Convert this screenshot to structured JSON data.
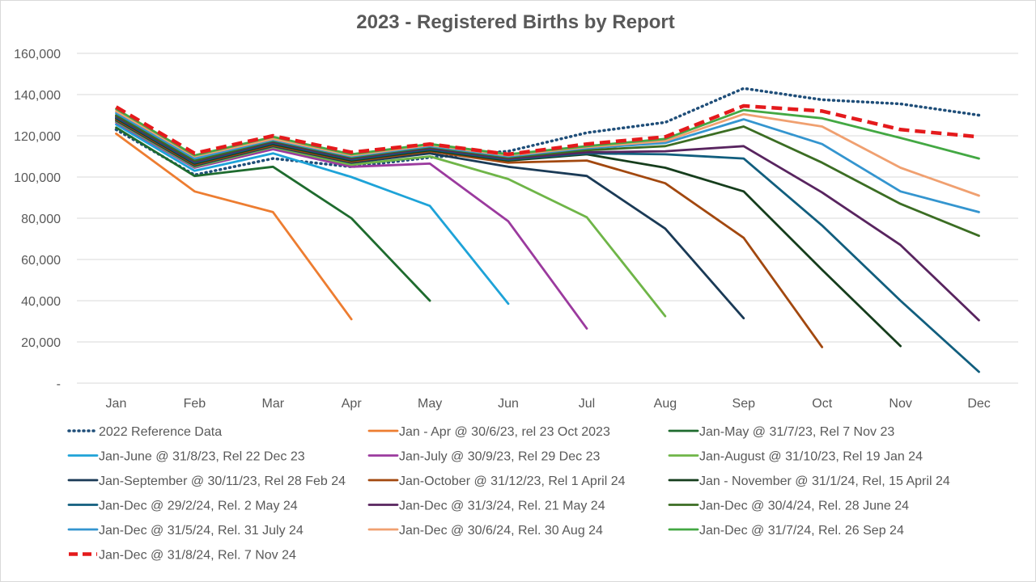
{
  "chart_data": {
    "type": "line",
    "title": "2023 - Registered Births by Report",
    "xlabel": "",
    "ylabel": "",
    "categories": [
      "Jan",
      "Feb",
      "Mar",
      "Apr",
      "May",
      "Jun",
      "Jul",
      "Aug",
      "Sep",
      "Oct",
      "Nov",
      "Dec"
    ],
    "y_tick_labels": [
      "-",
      "20,000",
      "40,000",
      "60,000",
      "80,000",
      "100,000",
      "120,000",
      "140,000",
      "160,000"
    ],
    "ylim": [
      0,
      160000
    ],
    "grid": true,
    "legend_position": "bottom",
    "series": [
      {
        "name": "2022 Reference Data",
        "color": "#1f4e79",
        "dash": "dotted",
        "values": [
          123000,
          101000,
          109000,
          105000,
          109500,
          112500,
          121500,
          126500,
          143000,
          137500,
          135500,
          130000
        ]
      },
      {
        "name": "Jan - Apr @ 30/6/23, rel 23 Oct 2023",
        "color": "#ed7d31",
        "dash": "solid",
        "values": [
          121000,
          93000,
          83000,
          31000,
          null,
          null,
          null,
          null,
          null,
          null,
          null,
          null
        ]
      },
      {
        "name": "Jan-May @ 31/7/23, Rel 7 Nov 23",
        "color": "#1e6b2e",
        "dash": "solid",
        "values": [
          124000,
          100500,
          105000,
          80000,
          40000,
          null,
          null,
          null,
          null,
          null,
          null,
          null
        ]
      },
      {
        "name": "Jan-June @ 31/8/23, Rel 22 Dec 23",
        "color": "#1ea3d8",
        "dash": "solid",
        "values": [
          125500,
          103000,
          111500,
          100000,
          86000,
          38500,
          null,
          null,
          null,
          null,
          null,
          null
        ]
      },
      {
        "name": "Jan-July @ 30/9/23, Rel 29 Dec 23",
        "color": "#9b3a9e",
        "dash": "solid",
        "values": [
          126500,
          104500,
          113500,
          105000,
          106500,
          78500,
          26500,
          null,
          null,
          null,
          null,
          null
        ]
      },
      {
        "name": "Jan-August @ 31/10/23, Rel 19 Jan 24",
        "color": "#6fb548",
        "dash": "solid",
        "values": [
          127000,
          105000,
          114500,
          106000,
          110000,
          99000,
          80500,
          32500,
          null,
          null,
          null,
          null
        ]
      },
      {
        "name": "Jan-September @ 30/11/23, Rel 28 Feb 24",
        "color": "#1a3a56",
        "dash": "solid",
        "values": [
          127500,
          105500,
          115000,
          107000,
          111500,
          105000,
          100500,
          75000,
          31500,
          null,
          null,
          null
        ]
      },
      {
        "name": "Jan-October @ 31/12/23, Rel 1 April 24",
        "color": "#a2480f",
        "dash": "solid",
        "values": [
          128000,
          106000,
          115500,
          107500,
          112500,
          107000,
          108000,
          97000,
          70500,
          17500,
          null,
          null
        ]
      },
      {
        "name": "Jan - November @ 31/1/24, Rel, 15 April 24",
        "color": "#153d1c",
        "dash": "solid",
        "values": [
          128500,
          106500,
          116000,
          108000,
          113000,
          108000,
          111000,
          104500,
          93000,
          55000,
          18000,
          null
        ]
      },
      {
        "name": "Jan-Dec @ 29/2/24, Rel. 2 May 24",
        "color": "#115e7e",
        "dash": "solid",
        "values": [
          129000,
          107000,
          116500,
          108500,
          113500,
          108500,
          111500,
          111000,
          109000,
          76500,
          40000,
          5500
        ]
      },
      {
        "name": "Jan-Dec @ 31/3/24, Rel. 21 May 24",
        "color": "#58245f",
        "dash": "solid",
        "values": [
          129500,
          107500,
          117000,
          109000,
          114000,
          109000,
          112000,
          112500,
          115000,
          92500,
          67000,
          30500
        ]
      },
      {
        "name": "Jan-Dec @ 30/4/24, Rel. 28 June 24",
        "color": "#3b6d23",
        "dash": "solid",
        "values": [
          130000,
          108000,
          117500,
          109500,
          114500,
          109500,
          113000,
          115000,
          124500,
          107000,
          87000,
          71500
        ]
      },
      {
        "name": "Jan-Dec @ 31/5/24, Rel. 31 July 24",
        "color": "#3495cf",
        "dash": "solid",
        "values": [
          131000,
          109000,
          118000,
          110000,
          115000,
          110000,
          114000,
          116500,
          128000,
          116000,
          93000,
          83000
        ]
      },
      {
        "name": "Jan-Dec @ 30/6/24, Rel. 30 Aug 24",
        "color": "#f0a070",
        "dash": "solid",
        "values": [
          132000,
          110000,
          118500,
          110500,
          115500,
          110500,
          114500,
          117500,
          130500,
          124500,
          104500,
          91000
        ]
      },
      {
        "name": "Jan-Dec @ 31/7/24, Rel. 26 Sep 24",
        "color": "#43a843",
        "dash": "solid",
        "values": [
          133000,
          110500,
          119500,
          111000,
          116000,
          111000,
          115000,
          118500,
          132500,
          128500,
          119000,
          109000
        ]
      },
      {
        "name": "Jan-Dec @ 31/8/24, Rel. 7 Nov 24",
        "color": "#e41a1c",
        "dash": "dashed",
        "values": [
          134000,
          111500,
          120000,
          112000,
          116000,
          111000,
          116000,
          119500,
          134500,
          132000,
          123000,
          119500
        ]
      }
    ]
  }
}
